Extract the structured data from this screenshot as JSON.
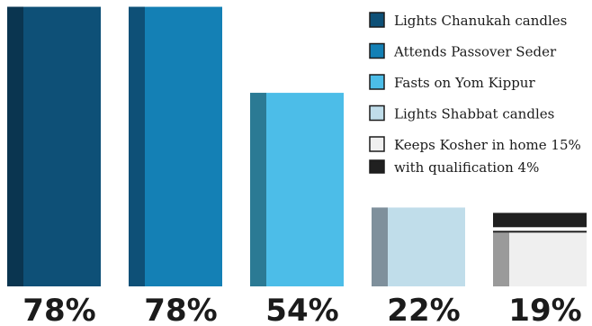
{
  "chart_data": {
    "type": "bar",
    "title": "",
    "xlabel": "",
    "ylabel": "",
    "ylim": [
      0,
      100
    ],
    "categories": [
      "Lights Chanukah candles",
      "Attends Passover Seder",
      "Fasts on Yom Kippur",
      "Lights Shabbat candles",
      "Keeps Kosher in home"
    ],
    "values": [
      78,
      78,
      54,
      22,
      19
    ],
    "value_labels": [
      "78%",
      "78%",
      "54%",
      "22%",
      "19%"
    ],
    "stacked_last": {
      "base_value": 15,
      "qualification_value": 4
    },
    "colors": {
      "bars": [
        "#0e5077",
        "#1480b5",
        "#4cbde8",
        "#c0ddea",
        "#efefef"
      ],
      "bar_sides": [
        "#0a3550",
        "#0e5077",
        "#2b7a94",
        "#7f909c",
        "#9a9a9a"
      ],
      "qualification": "#202020"
    },
    "legend": {
      "placement": "top-right",
      "entries": [
        {
          "label": "Lights Chanukah candles",
          "color": "#0e5077"
        },
        {
          "label": "Attends Passover Seder",
          "color": "#1480b5"
        },
        {
          "label": "Fasts on Yom Kippur",
          "color": "#4cbde8"
        },
        {
          "label": "Lights Shabbat candles",
          "color": "#c0ddea"
        },
        {
          "label": "Keeps Kosher in home 15%",
          "color": "#efefef"
        },
        {
          "label": "with qualification 4%",
          "color": "#202020"
        }
      ]
    }
  }
}
